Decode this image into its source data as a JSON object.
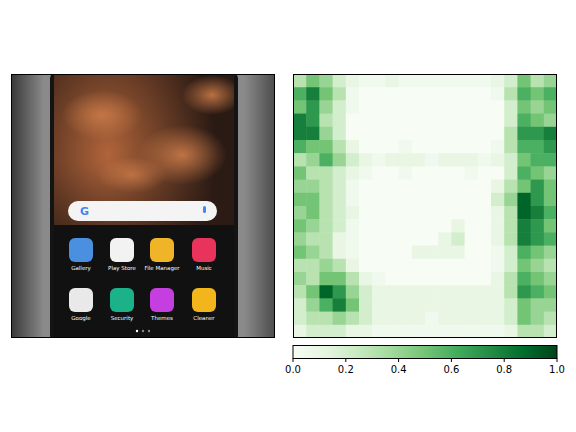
{
  "chart_data": {
    "type": "heatmap",
    "color": "Greens",
    "tick_labels": false,
    "cells": [
      [
        0.3,
        0.5,
        0.4,
        0.2,
        0.1,
        0.05,
        0.05,
        0.1,
        0.05,
        0.05,
        0.05,
        0.05,
        0.05,
        0.05,
        0.05,
        0.1,
        0.2,
        0.5,
        0.3,
        0.4
      ],
      [
        0.6,
        0.8,
        0.5,
        0.3,
        0.05,
        0,
        0,
        0,
        0,
        0,
        0,
        0,
        0,
        0,
        0,
        0.05,
        0.3,
        0.6,
        0.5,
        0.6
      ],
      [
        0.5,
        0.7,
        0.4,
        0.2,
        0.05,
        0,
        0,
        0,
        0,
        0,
        0,
        0,
        0,
        0,
        0,
        0,
        0.2,
        0.5,
        0.4,
        0.5
      ],
      [
        0.8,
        0.7,
        0.3,
        0.2,
        0,
        0,
        0,
        0,
        0,
        0,
        0,
        0,
        0,
        0,
        0,
        0,
        0.2,
        0.6,
        0.5,
        0.4
      ],
      [
        0.8,
        0.8,
        0.4,
        0.2,
        0,
        0,
        0,
        0,
        0,
        0,
        0,
        0,
        0,
        0,
        0,
        0,
        0.3,
        0.7,
        0.7,
        0.8
      ],
      [
        0.6,
        0.5,
        0.5,
        0.3,
        0.1,
        0,
        0,
        0,
        0.05,
        0,
        0,
        0,
        0,
        0,
        0,
        0.05,
        0.3,
        0.6,
        0.6,
        0.7
      ],
      [
        0.3,
        0.4,
        0.6,
        0.4,
        0.2,
        0.1,
        0.05,
        0.1,
        0.1,
        0.1,
        0.05,
        0.1,
        0.1,
        0.1,
        0.05,
        0.1,
        0.2,
        0.5,
        0.6,
        0.6
      ],
      [
        0.5,
        0.3,
        0.3,
        0.2,
        0.1,
        0.05,
        0,
        0,
        0.05,
        0,
        0,
        0,
        0,
        0.05,
        0,
        0,
        0.2,
        0.6,
        0.5,
        0.4
      ],
      [
        0.4,
        0.4,
        0.3,
        0.2,
        0.05,
        0,
        0,
        0,
        0,
        0,
        0,
        0,
        0,
        0,
        0,
        0.1,
        0.3,
        0.5,
        0.7,
        0.5
      ],
      [
        0.5,
        0.5,
        0.3,
        0.2,
        0.05,
        0,
        0,
        0,
        0,
        0,
        0,
        0,
        0,
        0,
        0,
        0.2,
        0.4,
        0.9,
        0.7,
        0.5
      ],
      [
        0.4,
        0.5,
        0.3,
        0.2,
        0.1,
        0,
        0,
        0,
        0,
        0,
        0,
        0,
        0,
        0,
        0,
        0.1,
        0.3,
        0.9,
        0.8,
        0.6
      ],
      [
        0.5,
        0.4,
        0.3,
        0.2,
        0.05,
        0,
        0,
        0,
        0,
        0,
        0,
        0,
        0.1,
        0,
        0,
        0.1,
        0.3,
        0.8,
        0.7,
        0.5
      ],
      [
        0.4,
        0.3,
        0.3,
        0.1,
        0.05,
        0,
        0,
        0,
        0,
        0,
        0,
        0.1,
        0.2,
        0,
        0,
        0.1,
        0.3,
        0.8,
        0.7,
        0.6
      ],
      [
        0.5,
        0.4,
        0.3,
        0.1,
        0.05,
        0,
        0,
        0,
        0,
        0.1,
        0.1,
        0.1,
        0.1,
        0,
        0,
        0.05,
        0.2,
        0.6,
        0.5,
        0.4
      ],
      [
        0.3,
        0.3,
        0.4,
        0.3,
        0.1,
        0,
        0,
        0,
        0,
        0,
        0,
        0,
        0,
        0,
        0,
        0.05,
        0.2,
        0.5,
        0.4,
        0.3
      ],
      [
        0.4,
        0.3,
        0.5,
        0.5,
        0.3,
        0.1,
        0.05,
        0,
        0,
        0,
        0,
        0,
        0,
        0,
        0,
        0.1,
        0.3,
        0.6,
        0.5,
        0.4
      ],
      [
        0.3,
        0.5,
        0.9,
        0.7,
        0.4,
        0.2,
        0.1,
        0.1,
        0.1,
        0.1,
        0.1,
        0.1,
        0.1,
        0.1,
        0.1,
        0.1,
        0.3,
        0.7,
        0.6,
        0.5
      ],
      [
        0.2,
        0.4,
        0.6,
        0.8,
        0.5,
        0.2,
        0.1,
        0.1,
        0.1,
        0.1,
        0.1,
        0.1,
        0.1,
        0.1,
        0.1,
        0.1,
        0.2,
        0.5,
        0.4,
        0.4
      ],
      [
        0.2,
        0.3,
        0.3,
        0.4,
        0.3,
        0.2,
        0.1,
        0.1,
        0.1,
        0.1,
        0.05,
        0.1,
        0.1,
        0.1,
        0.1,
        0.1,
        0.2,
        0.5,
        0.4,
        0.3
      ],
      [
        0.1,
        0.2,
        0.2,
        0.2,
        0.1,
        0.1,
        0.05,
        0.05,
        0.05,
        0.05,
        0.05,
        0.05,
        0.05,
        0.05,
        0.05,
        0.05,
        0.1,
        0.3,
        0.3,
        0.2
      ]
    ],
    "colorbar_range": [
      0,
      1
    ],
    "colorbar_ticks": [
      {
        "value": 0,
        "label": "0.0"
      },
      0.2,
      0.4,
      0.6,
      0.8,
      {
        "value": 1,
        "label": "1.0"
      }
    ]
  },
  "image": {
    "search_logo": "G",
    "apps": [
      "Gallery",
      "Play Store",
      "File Manager",
      "Music",
      "Google",
      "Security",
      "Themes",
      "Cleaner"
    ]
  }
}
